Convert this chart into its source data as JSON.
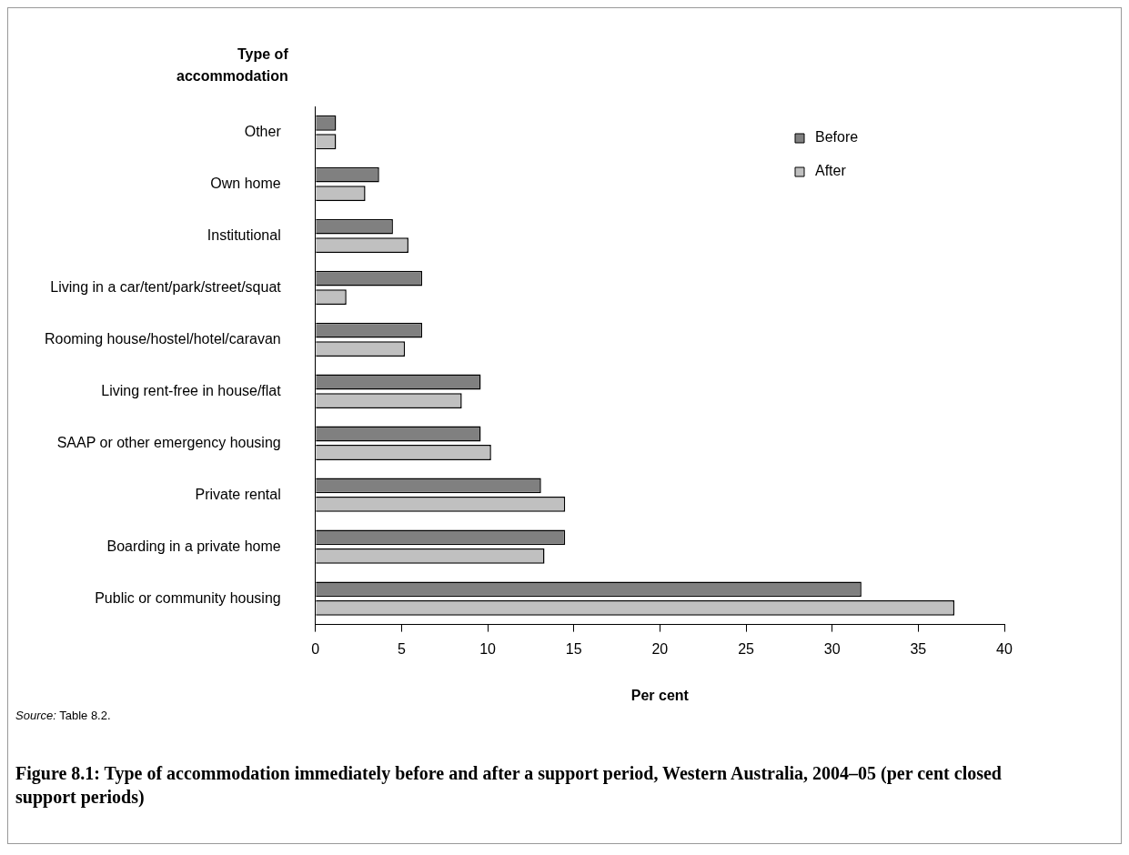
{
  "chart_data": {
    "type": "bar",
    "orientation": "horizontal",
    "title": "Figure 8.1: Type of accommodation immediately before and after a support period, Western Australia, 2004–05 (per cent closed support periods)",
    "ylabel": "Type of accommodation",
    "xlabel": "Per cent",
    "annotations": [
      "Source: Table 8.2."
    ],
    "categories": [
      "Other",
      "Own home",
      "Institutional",
      "Living in a car/tent/park/street/squat",
      "Rooming house/hostel/hotel/caravan",
      "Living rent-free in house/flat",
      "SAAP or other emergency housing",
      "Private rental",
      "Boarding in a private home",
      "Public or community housing"
    ],
    "series": [
      {
        "name": "Before",
        "color": "#808080",
        "values": [
          1.2,
          3.7,
          4.5,
          6.2,
          6.2,
          9.6,
          9.6,
          13.1,
          14.5,
          31.7
        ]
      },
      {
        "name": "After",
        "color": "#c0c0c0",
        "values": [
          1.2,
          2.9,
          5.4,
          1.8,
          5.2,
          8.5,
          10.2,
          14.5,
          13.3,
          37.1
        ]
      }
    ],
    "xlim": [
      0,
      40
    ],
    "xticks": [
      0,
      5,
      10,
      15,
      20,
      25,
      30,
      35,
      40
    ],
    "grid": false,
    "legend": "top right"
  }
}
